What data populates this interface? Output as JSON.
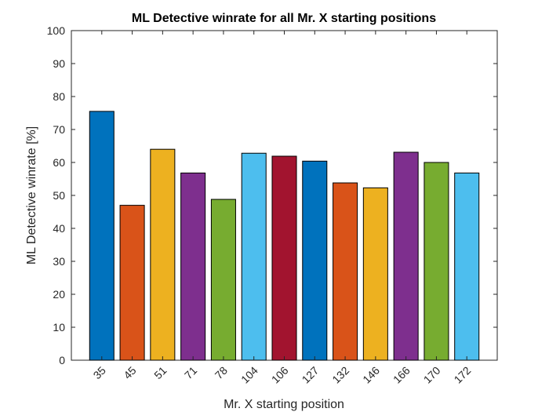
{
  "chart_data": {
    "type": "bar",
    "title": "ML Detective winrate for all Mr. X starting positions",
    "xlabel": "Mr. X starting position",
    "ylabel": "ML Detective winrate [%]",
    "ylim": [
      0,
      100
    ],
    "yticks": [
      "0",
      "10",
      "20",
      "30",
      "40",
      "50",
      "60",
      "70",
      "80",
      "90",
      "100"
    ],
    "categories": [
      "35",
      "45",
      "51",
      "71",
      "78",
      "104",
      "106",
      "127",
      "132",
      "146",
      "166",
      "170",
      "172"
    ],
    "values": [
      75.5,
      47.0,
      64.0,
      56.8,
      48.8,
      62.8,
      61.9,
      60.4,
      53.8,
      52.3,
      63.1,
      60.0,
      56.8
    ],
    "colors": [
      "#0072BD",
      "#D95319",
      "#EDB120",
      "#7E2F8E",
      "#77AC30",
      "#4DBEEE",
      "#A2142F",
      "#0072BD",
      "#D95319",
      "#EDB120",
      "#7E2F8E",
      "#77AC30",
      "#4DBEEE"
    ],
    "grid": false,
    "box": true
  }
}
